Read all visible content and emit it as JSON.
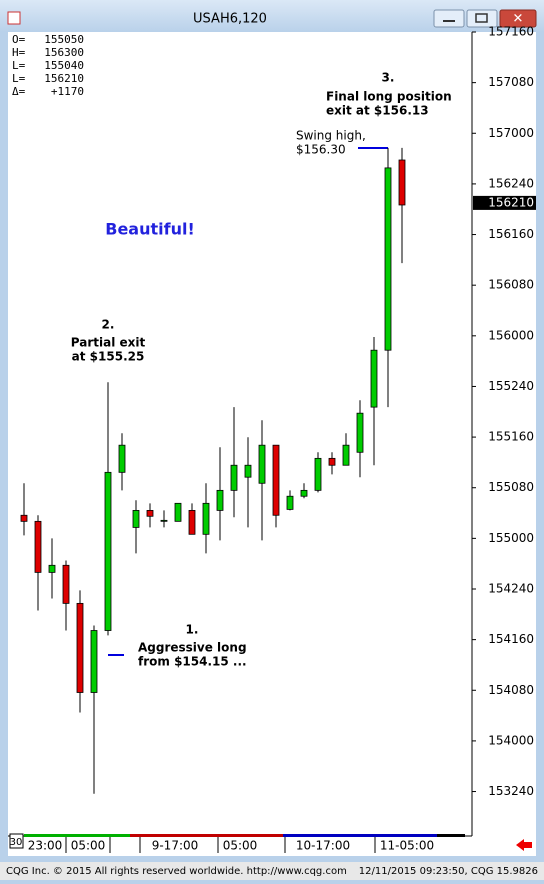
{
  "window": {
    "title": "USAH6,120",
    "period": "30"
  },
  "footer": {
    "copyright": "CQG Inc. © 2015 All rights reserved worldwide. http://www.cqg.com",
    "timestamp": "12/11/2015 09:23:50, CQG 15.9826"
  },
  "chart_data": {
    "type": "candlestick",
    "info": [
      {
        "label": "O=",
        "value": "155050"
      },
      {
        "label": "H=",
        "value": "156300"
      },
      {
        "label": "L=",
        "value": "155040"
      },
      {
        "label": "L=",
        "value": "156210"
      },
      {
        "label": "Δ=",
        "value": "+1170"
      }
    ],
    "open": [
      155.114,
      155.084,
      154.832,
      154.867,
      154.679,
      154.239,
      154.545,
      155.326,
      155.054,
      155.138,
      155.089,
      155.084,
      155.138,
      155.02,
      155.138,
      155.237,
      155.302,
      155.272,
      155.46,
      155.143,
      155.208,
      155.237,
      155.395,
      155.361,
      155.425,
      155.648,
      155.929,
      156.868
    ],
    "high": [
      155.272,
      155.114,
      155.0,
      154.891,
      154.743,
      154.57,
      155.771,
      155.519,
      155.188,
      155.173,
      155.138,
      155.173,
      155.173,
      155.272,
      155.45,
      155.648,
      155.499,
      155.583,
      155.46,
      155.237,
      155.272,
      155.425,
      155.425,
      155.519,
      155.682,
      155.994,
      156.928,
      156.928
    ],
    "low": [
      155.015,
      154.644,
      154.703,
      154.545,
      154.14,
      153.739,
      154.521,
      155.237,
      154.926,
      155.054,
      155.054,
      155.084,
      155.02,
      154.926,
      154.99,
      155.104,
      155.054,
      154.99,
      155.054,
      155.138,
      155.198,
      155.227,
      155.316,
      155.361,
      155.302,
      155.361,
      155.648,
      156.359
    ],
    "close": [
      155.084,
      154.832,
      154.867,
      154.679,
      154.239,
      154.545,
      155.326,
      155.46,
      155.138,
      155.109,
      155.089,
      155.173,
      155.02,
      155.173,
      155.237,
      155.361,
      155.361,
      155.46,
      155.114,
      155.208,
      155.237,
      155.395,
      155.361,
      155.46,
      155.618,
      155.929,
      156.829,
      156.646
    ],
    "up_color": "#00cc00",
    "down_color": "#dd0000",
    "ylim": [
      153.57,
      157.5
    ],
    "yticks": [
      {
        "value": 157.5,
        "label": "157160"
      },
      {
        "value": 157.25,
        "label": "157080"
      },
      {
        "value": 157.0,
        "label": "157000"
      },
      {
        "value": 156.75,
        "label": "156240"
      },
      {
        "value": 156.5,
        "label": "156160"
      },
      {
        "value": 156.25,
        "label": "156080"
      },
      {
        "value": 156.0,
        "label": "156000"
      },
      {
        "value": 155.75,
        "label": "155240"
      },
      {
        "value": 155.5,
        "label": "155160"
      },
      {
        "value": 155.25,
        "label": "155080"
      },
      {
        "value": 155.0,
        "label": "155000"
      },
      {
        "value": 154.75,
        "label": "154240"
      },
      {
        "value": 154.5,
        "label": "154160"
      },
      {
        "value": 154.25,
        "label": "154080"
      },
      {
        "value": 154.0,
        "label": "154000"
      },
      {
        "value": 153.75,
        "label": "153240"
      }
    ],
    "last_price": {
      "value": 156.65625,
      "label": "156210"
    },
    "x_labels": [
      "23:00",
      "05:00",
      "9-17:00",
      "05:00",
      "10-17:00",
      "11-05:00"
    ],
    "annotations": [
      "Beautiful!",
      "2.",
      "Partial exit",
      "at $155.25",
      "1.",
      "Aggressive long",
      "from $154.15 ...",
      "3.",
      "Final long position",
      "exit at $156.13",
      "Swing high,",
      "$156.30"
    ],
    "grid": false
  }
}
